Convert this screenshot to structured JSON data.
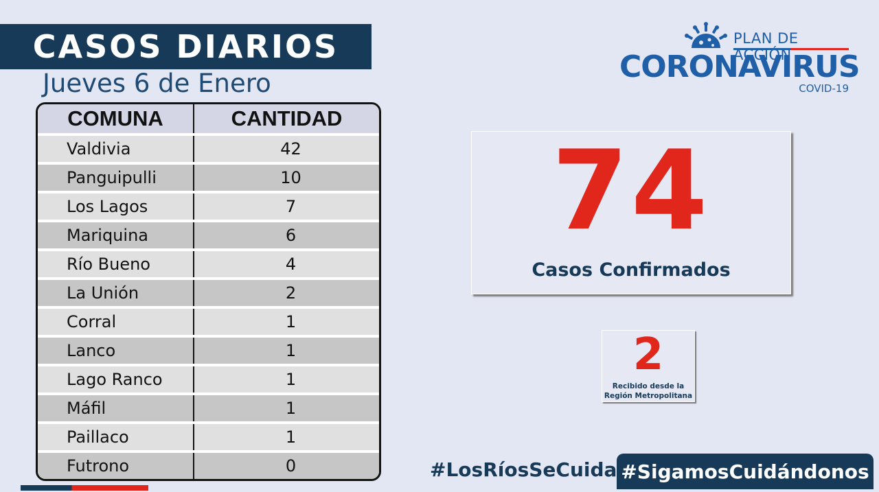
{
  "header": {
    "title": "CASOS DIARIOS",
    "date": "Jueves 6 de Enero"
  },
  "table": {
    "headers": [
      "COMUNA",
      "CANTIDAD"
    ],
    "rows": [
      {
        "comuna": "Valdivia",
        "cantidad": "42"
      },
      {
        "comuna": "Panguipulli",
        "cantidad": "10"
      },
      {
        "comuna": "Los Lagos",
        "cantidad": "7"
      },
      {
        "comuna": "Mariquina",
        "cantidad": "6"
      },
      {
        "comuna": "Río Bueno",
        "cantidad": "4"
      },
      {
        "comuna": "La Unión",
        "cantidad": "2"
      },
      {
        "comuna": "Corral",
        "cantidad": "1"
      },
      {
        "comuna": "Lanco",
        "cantidad": "1"
      },
      {
        "comuna": "Lago Ranco",
        "cantidad": "1"
      },
      {
        "comuna": "Máfil",
        "cantidad": "1"
      },
      {
        "comuna": "Paillaco",
        "cantidad": "1"
      },
      {
        "comuna": "Futrono",
        "cantidad": "0"
      }
    ]
  },
  "logo": {
    "line1": "PLAN DE ACCIÓN",
    "line2": "CORONAVIRUS",
    "line3": "COVID-19"
  },
  "summary": {
    "total": "74",
    "total_label": "Casos Confirmados",
    "external": "2",
    "external_label_1": "Recibido desde  la",
    "external_label_2": "Región Metropolitana"
  },
  "footer": {
    "hashtag_1": "#LosRíosSeCuida",
    "hashtag_2": "#SigamosCuidándonos"
  },
  "colors": {
    "navy": "#163a57",
    "red": "#e1261c",
    "blue": "#1e5fa8",
    "background": "#e3e6f3"
  }
}
